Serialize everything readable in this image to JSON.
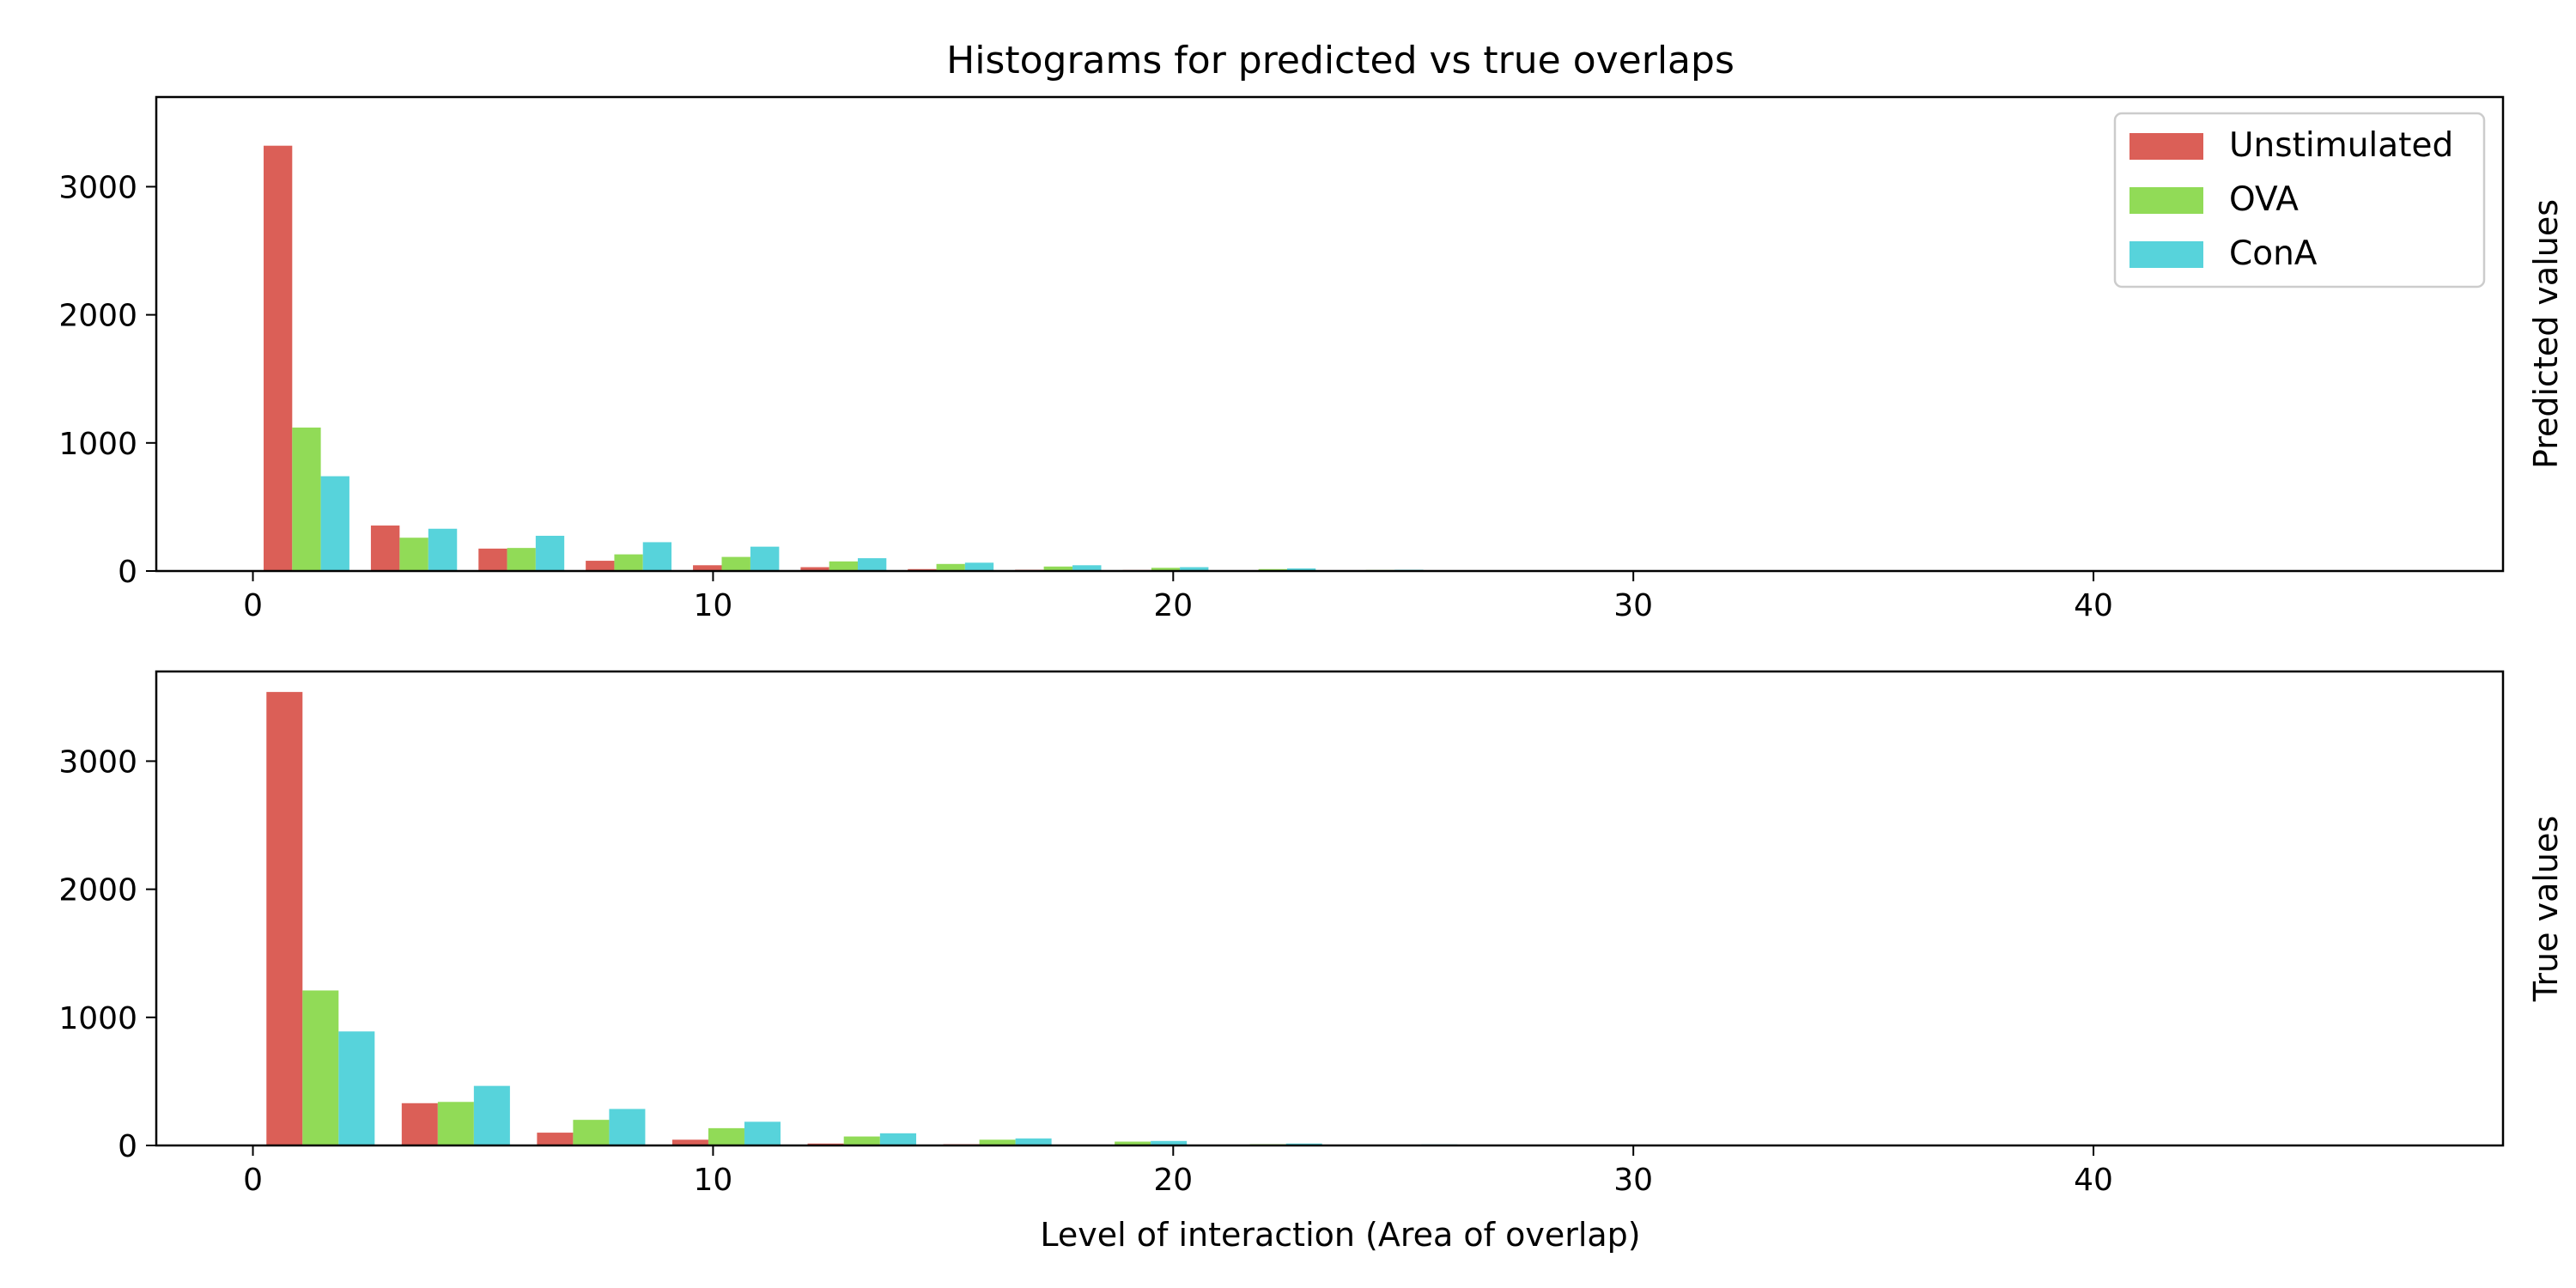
{
  "chart_data": {
    "type": "bar",
    "title": "Histograms for predicted vs true overlaps",
    "xlabel": "Level of interaction (Area of overlap)",
    "xlim": [
      -2.1,
      48.9
    ],
    "xticks": [
      0,
      10,
      20,
      30,
      40
    ],
    "yticks": [
      0,
      1000,
      2000,
      3000
    ],
    "legend": {
      "location": "top-right",
      "entries": [
        "Unstimulated",
        "OVA",
        "ConA"
      ]
    },
    "colors": {
      "Unstimulated": "#db5f57",
      "OVA": "#91db57",
      "ConA": "#57d3db"
    },
    "subplots": [
      {
        "ylabel": "Predicted values",
        "ylim": [
          0,
          3700
        ],
        "bin_edges": [
          0,
          2.33,
          4.67,
          7,
          9.33,
          11.67,
          14,
          16.33,
          18.67,
          21,
          23.33,
          25.67,
          28,
          30.33,
          32.67,
          35,
          37.33,
          39.67,
          42,
          44.33,
          46.67
        ],
        "series": [
          {
            "name": "Unstimulated",
            "values": [
              3320,
              355,
              175,
              80,
              45,
              30,
              15,
              10,
              8,
              5,
              2,
              1,
              0,
              0,
              0,
              0,
              0,
              0,
              0,
              0
            ]
          },
          {
            "name": "OVA",
            "values": [
              1120,
              260,
              180,
              130,
              110,
              75,
              55,
              35,
              25,
              15,
              8,
              5,
              2,
              1,
              0,
              0,
              0,
              0,
              0,
              0
            ]
          },
          {
            "name": "ConA",
            "values": [
              740,
              330,
              275,
              225,
              190,
              100,
              65,
              45,
              30,
              20,
              10,
              5,
              2,
              1,
              0,
              0,
              0,
              0,
              0,
              0
            ]
          }
        ]
      },
      {
        "ylabel": "True values",
        "ylim": [
          0,
          3700
        ],
        "bin_edges": [
          0,
          2.94,
          5.88,
          8.82,
          11.76,
          14.71,
          17.65,
          20.59,
          23.53,
          26.47,
          29.41,
          32.35,
          35.29,
          38.24,
          41.18,
          44.12,
          47.06
        ],
        "series": [
          {
            "name": "Unstimulated",
            "values": [
              3540,
              330,
              100,
              45,
              15,
              10,
              5,
              2,
              1,
              0,
              0,
              0,
              0,
              0,
              0,
              0
            ]
          },
          {
            "name": "OVA",
            "values": [
              1210,
              340,
              200,
              135,
              70,
              45,
              30,
              10,
              5,
              2,
              0,
              0,
              0,
              0,
              0,
              0
            ]
          },
          {
            "name": "ConA",
            "values": [
              890,
              465,
              285,
              185,
              95,
              55,
              35,
              15,
              8,
              3,
              0,
              0,
              0,
              0,
              0,
              0
            ]
          }
        ]
      }
    ]
  }
}
